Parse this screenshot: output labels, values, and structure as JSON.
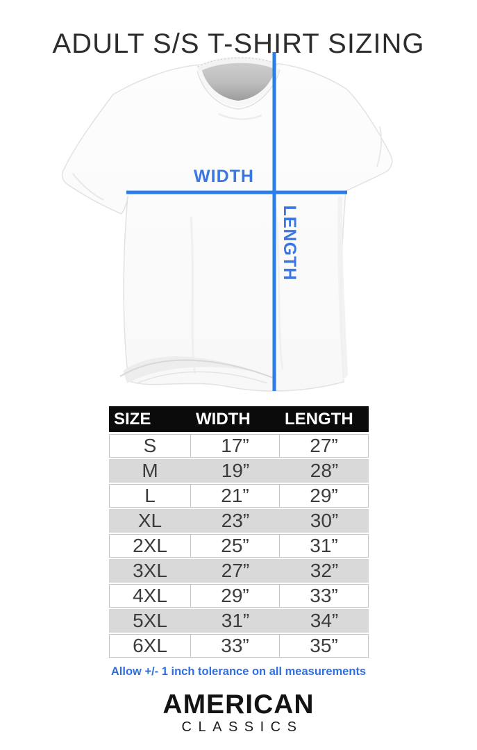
{
  "title": "ADULT S/S T-SHIRT SIZING",
  "diagram": {
    "width_label": "WIDTH",
    "length_label": "LENGTH"
  },
  "table": {
    "headers": [
      "SIZE",
      "WIDTH",
      "LENGTH"
    ],
    "rows": [
      [
        "S",
        "17”",
        "27”"
      ],
      [
        "M",
        "19”",
        "28”"
      ],
      [
        "L",
        "21”",
        "29”"
      ],
      [
        "XL",
        "23”",
        "30”"
      ],
      [
        "2XL",
        "25”",
        "31”"
      ],
      [
        "3XL",
        "27”",
        "32”"
      ],
      [
        "4XL",
        "29”",
        "33”"
      ],
      [
        "5XL",
        "31”",
        "34”"
      ],
      [
        "6XL",
        "33”",
        "35”"
      ]
    ]
  },
  "note": "Allow +/- 1 inch tolerance on all measurements",
  "brand": {
    "name": "AMERICAN",
    "subname": "CLASSICS"
  },
  "colors": {
    "measure_line_blue": "#2b7de9",
    "measure_label_blue": "#3a76e4",
    "note_blue": "#2f6fe0",
    "header_bg": "#0b0b0b",
    "header_text": "#ffffff",
    "alt_row_gray": "#d9d9d9"
  },
  "chart_data": {
    "type": "table",
    "title": "ADULT S/S T-SHIRT SIZING",
    "columns": [
      "SIZE",
      "WIDTH",
      "LENGTH"
    ],
    "units": "inches",
    "rows": [
      {
        "size": "S",
        "width_in": 17,
        "length_in": 27
      },
      {
        "size": "M",
        "width_in": 19,
        "length_in": 28
      },
      {
        "size": "L",
        "width_in": 21,
        "length_in": 29
      },
      {
        "size": "XL",
        "width_in": 23,
        "length_in": 30
      },
      {
        "size": "2XL",
        "width_in": 25,
        "length_in": 31
      },
      {
        "size": "3XL",
        "width_in": 27,
        "length_in": 32
      },
      {
        "size": "4XL",
        "width_in": 29,
        "length_in": 33
      },
      {
        "size": "5XL",
        "width_in": 31,
        "length_in": 34
      },
      {
        "size": "6XL",
        "width_in": 33,
        "length_in": 35
      }
    ],
    "note": "Allow +/- 1 inch tolerance on all measurements"
  }
}
